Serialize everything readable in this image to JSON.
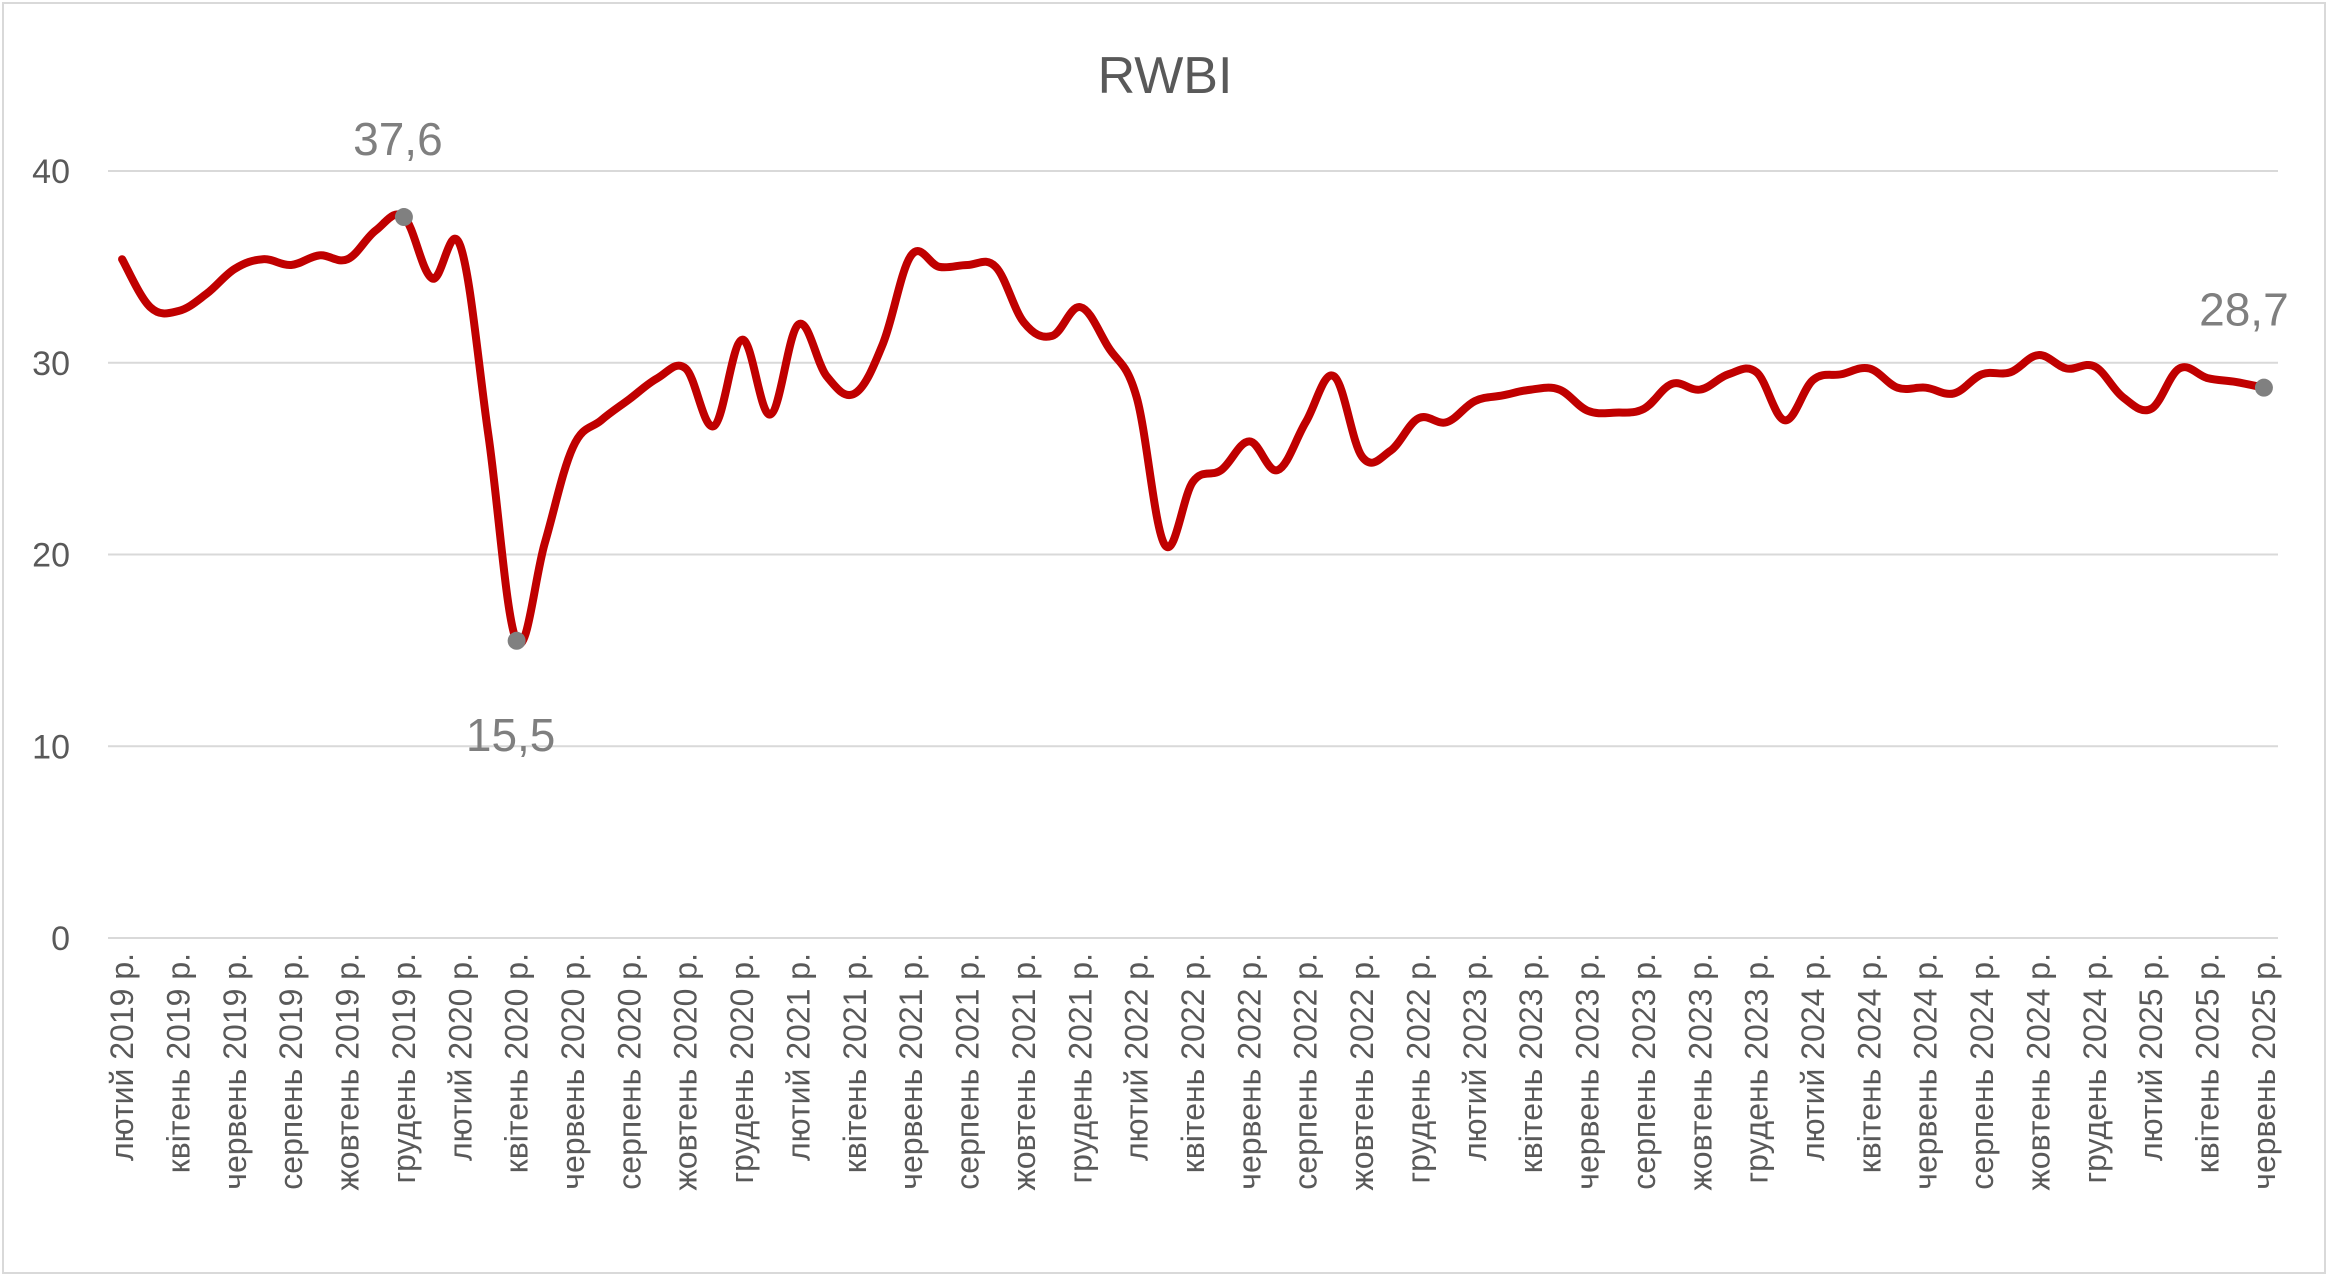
{
  "chart_data": {
    "type": "line",
    "title": "RWBI",
    "xlabel": "",
    "ylabel": "",
    "ylim": [
      0,
      40
    ],
    "yticks": [
      "0",
      "10",
      "20",
      "30",
      "40"
    ],
    "grid": true,
    "legend": "none",
    "colors": {
      "line": "#c00000",
      "marker": "#808080",
      "grid": "#d9d9d9",
      "text": "#595959",
      "data_label": "#7f7f7f"
    },
    "x": [
      "лютий 2019 р.",
      "",
      "квітень 2019 р.",
      "",
      "червень 2019 р.",
      "",
      "серпень 2019 р.",
      "",
      "жовтень 2019 р.",
      "",
      "грудень 2019 р.",
      "",
      "лютий 2020 р.",
      "",
      "квітень 2020 р.",
      "",
      "червень 2020 р.",
      "",
      "серпень 2020 р.",
      "",
      "жовтень 2020 р.",
      "",
      "грудень 2020 р.",
      "",
      "лютий 2021 р.",
      "",
      "квітень 2021 р.",
      "",
      "червень 2021 р.",
      "",
      "серпень 2021 р.",
      "",
      "жовтень 2021 р.",
      "",
      "грудень 2021 р.",
      "",
      "лютий 2022 р.",
      "",
      "квітень 2022 р.",
      "",
      "червень 2022 р.",
      "",
      "серпень 2022 р.",
      "",
      "жовтень 2022 р.",
      "",
      "грудень 2022 р.",
      "",
      "лютий 2023 р.",
      "",
      "квітень 2023 р.",
      "",
      "червень 2023 р.",
      "",
      "серпень 2023 р.",
      "",
      "жовтень 2023 р.",
      "",
      "грудень 2023 р.",
      "",
      "лютий 2024 р.",
      "",
      "квітень 2024 р.",
      "",
      "червень 2024 р.",
      "",
      "серпень 2024 р.",
      "",
      "жовтень 2024 р.",
      "",
      "грудень 2024 р.",
      "",
      "лютий 2025 р.",
      "",
      "квітень 2025 р.",
      "",
      "червень 2025 р."
    ],
    "series": [
      {
        "name": "",
        "values": [
          35.4,
          32.9,
          32.7,
          33.6,
          34.9,
          35.4,
          35.1,
          35.6,
          35.4,
          36.9,
          37.6,
          34.4,
          36.1,
          26.2,
          15.5,
          20.6,
          25.6,
          27.0,
          28.1,
          29.2,
          29.7,
          26.7,
          31.2,
          27.3,
          32.0,
          29.3,
          28.4,
          31.0,
          35.6,
          35.0,
          35.1,
          35.0,
          32.1,
          31.4,
          32.9,
          30.8,
          28.2,
          20.5,
          23.8,
          24.4,
          25.9,
          24.4,
          26.9,
          29.3,
          25.1,
          25.4,
          27.1,
          26.9,
          28.0,
          28.3,
          28.6,
          28.6,
          27.5,
          27.4,
          27.6,
          28.9,
          28.6,
          29.4,
          29.5,
          27.0,
          29.1,
          29.4,
          29.7,
          28.7,
          28.7,
          28.4,
          29.4,
          29.5,
          30.4,
          29.7,
          29.8,
          28.2,
          27.6,
          29.7,
          29.2,
          29.0,
          28.7
        ],
        "data_labels": [
          {
            "index": 10,
            "text": "37,6",
            "position": "above"
          },
          {
            "index": 14,
            "text": "15,5",
            "position": "below"
          },
          {
            "index": 76,
            "text": "28,7",
            "position": "above"
          }
        ]
      }
    ]
  }
}
